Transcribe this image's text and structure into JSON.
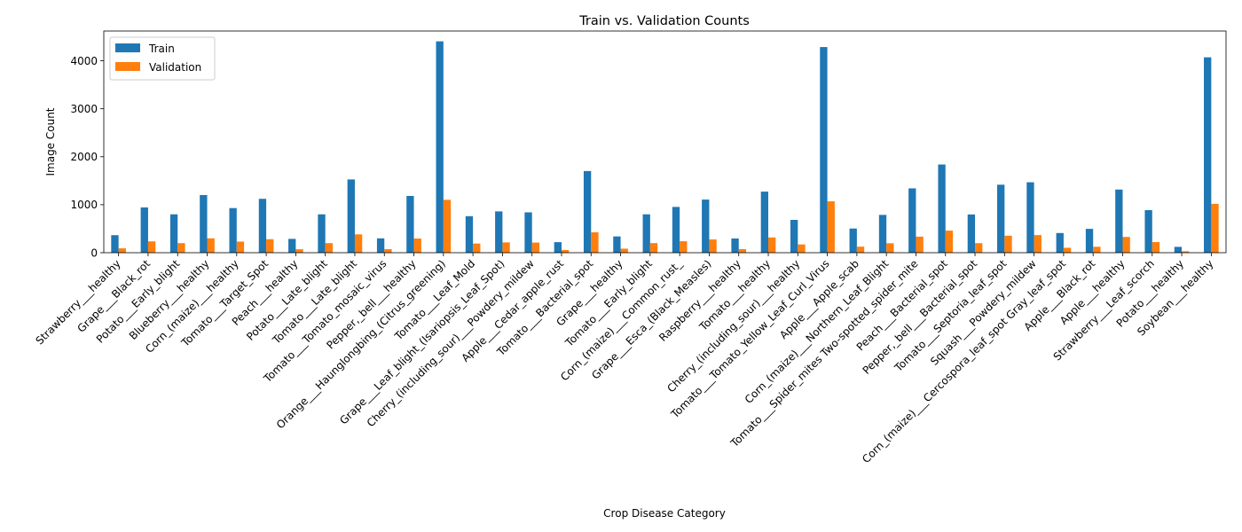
{
  "chart_data": {
    "type": "bar",
    "title": "Train vs. Validation Counts",
    "xlabel": "Crop Disease Category",
    "ylabel": "Image Count",
    "ylim": [
      0,
      4620
    ],
    "yticks": [
      0,
      1000,
      2000,
      3000,
      4000
    ],
    "grid": false,
    "legend_position": "top-left",
    "categories": [
      "Strawberry___healthy",
      "Grape___Black_rot",
      "Potato___Early_blight",
      "Blueberry___healthy",
      "Corn_(maize)___healthy",
      "Tomato___Target_Spot",
      "Peach___healthy",
      "Potato___Late_blight",
      "Tomato___Late_blight",
      "Tomato___Tomato_mosaic_virus",
      "Pepper,_bell___healthy",
      "Orange___Haunglongbing_(Citrus_greening)",
      "Tomato___Leaf_Mold",
      "Grape___Leaf_blight_(Isariopsis_Leaf_Spot)",
      "Cherry_(including_sour)___Powdery_mildew",
      "Apple___Cedar_apple_rust",
      "Tomato___Bacterial_spot",
      "Grape___healthy",
      "Tomato___Early_blight",
      "Corn_(maize)___Common_rust_",
      "Grape___Esca_(Black_Measles)",
      "Raspberry___healthy",
      "Tomato___healthy",
      "Cherry_(including_sour)___healthy",
      "Tomato___Tomato_Yellow_Leaf_Curl_Virus",
      "Apple___Apple_scab",
      "Corn_(maize)___Northern_Leaf_Blight",
      "Tomato___Spider_mites Two-spotted_spider_mite",
      "Peach___Bacterial_spot",
      "Pepper,_bell___Bacterial_spot",
      "Tomato___Septoria_leaf_spot",
      "Squash___Powdery_mildew",
      "Corn_(maize)___Cercospora_leaf_spot Gray_leaf_spot",
      "Apple___Black_rot",
      "Apple___healthy",
      "Strawberry___Leaf_scorch",
      "Potato___healthy",
      "Soybean___healthy"
    ],
    "series": [
      {
        "name": "Train",
        "color": "#1f77b4",
        "values": [
          365,
          944,
          800,
          1202,
          930,
          1123,
          288,
          800,
          1527,
          299,
          1183,
          4405,
          761,
          861,
          841,
          220,
          1702,
          339,
          800,
          954,
          1107,
          297,
          1273,
          684,
          4286,
          504,
          788,
          1341,
          1838,
          797,
          1417,
          1468,
          410,
          497,
          1316,
          887,
          122,
          4072
        ]
      },
      {
        "name": "Validation",
        "color": "#ff7f0e",
        "values": [
          91,
          236,
          200,
          300,
          232,
          281,
          72,
          200,
          382,
          74,
          295,
          1102,
          191,
          215,
          211,
          55,
          425,
          84,
          200,
          239,
          276,
          74,
          318,
          172,
          1071,
          126,
          197,
          335,
          460,
          199,
          354,
          367,
          103,
          124,
          329,
          222,
          30,
          1018
        ]
      }
    ]
  }
}
